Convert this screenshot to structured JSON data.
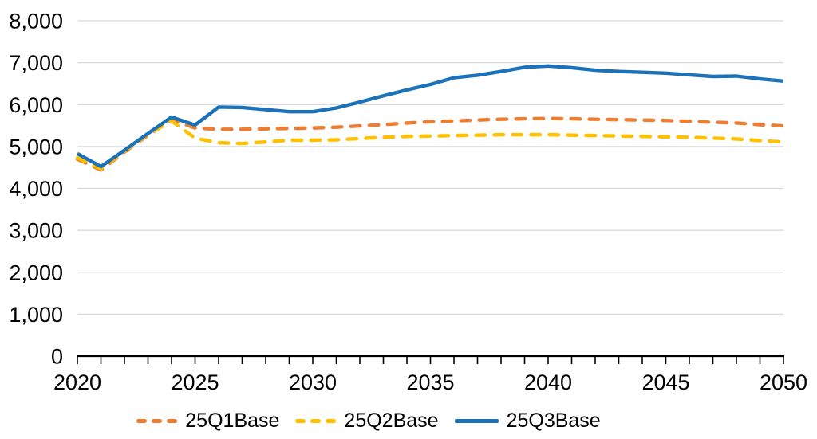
{
  "chart_data": {
    "type": "line",
    "title": "",
    "xlabel": "",
    "ylabel": "",
    "x": [
      2020,
      2021,
      2022,
      2023,
      2024,
      2025,
      2026,
      2027,
      2028,
      2029,
      2030,
      2031,
      2032,
      2033,
      2034,
      2035,
      2036,
      2037,
      2038,
      2039,
      2040,
      2041,
      2042,
      2043,
      2044,
      2045,
      2046,
      2047,
      2048,
      2049,
      2050
    ],
    "series": [
      {
        "name": "25Q1Base",
        "color": "#ED7D31",
        "style": "dashed",
        "values": [
          4700,
          4440,
          4870,
          5270,
          5640,
          5440,
          5410,
          5410,
          5420,
          5430,
          5440,
          5460,
          5490,
          5520,
          5560,
          5590,
          5610,
          5630,
          5650,
          5660,
          5670,
          5660,
          5650,
          5640,
          5630,
          5620,
          5600,
          5580,
          5560,
          5520,
          5490
        ]
      },
      {
        "name": "25Q2Base",
        "color": "#FFC000",
        "style": "dashed",
        "values": [
          4730,
          4470,
          4890,
          5290,
          5610,
          5200,
          5090,
          5070,
          5110,
          5150,
          5150,
          5160,
          5190,
          5220,
          5240,
          5250,
          5260,
          5270,
          5280,
          5280,
          5280,
          5270,
          5260,
          5250,
          5240,
          5230,
          5220,
          5200,
          5180,
          5140,
          5110
        ]
      },
      {
        "name": "25Q3Base",
        "color": "#1B72B8",
        "style": "solid",
        "values": [
          4830,
          4520,
          4910,
          5310,
          5700,
          5510,
          5940,
          5930,
          5880,
          5830,
          5830,
          5920,
          6060,
          6210,
          6350,
          6480,
          6640,
          6700,
          6790,
          6890,
          6920,
          6880,
          6820,
          6790,
          6770,
          6750,
          6710,
          6670,
          6680,
          6610,
          6560
        ]
      }
    ],
    "xlim": [
      2020,
      2050
    ],
    "ylim": [
      0,
      8000
    ],
    "x_tick_step": 1,
    "x_label_step": 5,
    "y_tick_step": 1000,
    "x_tick_labels": [
      "2020",
      "2025",
      "2030",
      "2035",
      "2040",
      "2045",
      "2050"
    ],
    "y_tick_labels": [
      "0",
      "1,000",
      "2,000",
      "3,000",
      "4,000",
      "5,000",
      "6,000",
      "7,000",
      "8,000"
    ],
    "grid": "horizontal",
    "legend_position": "bottom",
    "colors": {
      "gridline": "#D9D9D9",
      "axis": "#000000",
      "text": "#000000",
      "background": "#FFFFFF"
    }
  }
}
